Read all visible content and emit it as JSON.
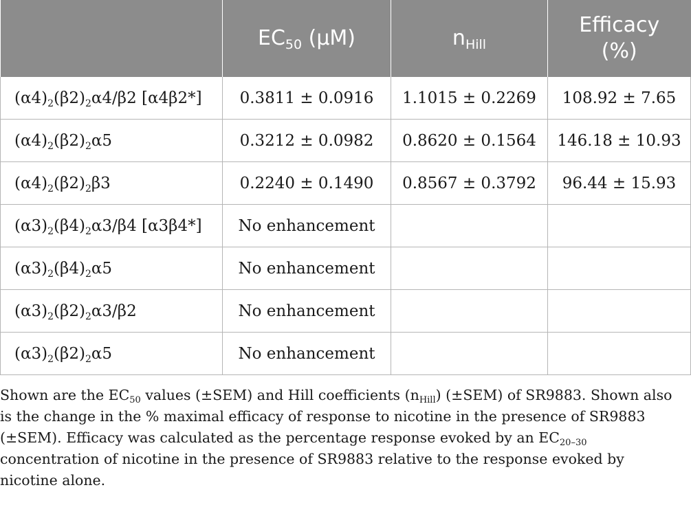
{
  "table": {
    "headers": [
      {
        "main": "",
        "sub": "",
        "tail": ""
      },
      {
        "main": "EC",
        "sub": "50",
        "tail": " (μM)"
      },
      {
        "main": "n",
        "sub": "Hill",
        "tail": ""
      },
      {
        "main": "Efficacy",
        "sub": "",
        "tail": "(%)"
      }
    ],
    "rows": [
      {
        "label": [
          "(α4)",
          "2",
          "(β2)",
          "2",
          "α4/β2 [α4β2*]"
        ],
        "ec50": "0.3811 ± 0.0916",
        "nhill": "1.1015 ± 0.2269",
        "efficacy": "108.92 ± 7.65"
      },
      {
        "label": [
          "(α4)",
          "2",
          "(β2)",
          "2",
          "α5"
        ],
        "ec50": "0.3212 ± 0.0982",
        "nhill": "0.8620 ± 0.1564",
        "efficacy": "146.18 ± 10.93"
      },
      {
        "label": [
          "(α4)",
          "2",
          "(β2)",
          "2",
          "β3"
        ],
        "ec50": "0.2240 ± 0.1490",
        "nhill": "0.8567 ± 0.3792",
        "efficacy": "96.44 ± 15.93"
      },
      {
        "label": [
          "(α3)",
          "2",
          "(β4)",
          "2",
          "α3/β4 [α3β4*]"
        ],
        "ec50": "No enhancement",
        "nhill": "",
        "efficacy": ""
      },
      {
        "label": [
          "(α3)",
          "2",
          "(β4)",
          "2",
          "α5"
        ],
        "ec50": "No enhancement",
        "nhill": "",
        "efficacy": ""
      },
      {
        "label": [
          "(α3)",
          "2",
          "(β2)",
          "2",
          "α3/β2"
        ],
        "ec50": "No enhancement",
        "nhill": "",
        "efficacy": ""
      },
      {
        "label": [
          "(α3)",
          "2",
          "(β2)",
          "2",
          "α5"
        ],
        "ec50": "No enhancement",
        "nhill": "",
        "efficacy": ""
      }
    ]
  },
  "footnote": {
    "p1": "Shown are the EC",
    "s1": "50",
    "p2": " values (±SEM) and Hill coefficients (n",
    "s2": "Hill",
    "p3": ") (±SEM) of SR9883. Shown also is the change in the % maximal efficacy of response to nicotine in the presence of SR9883 (±SEM). Efficacy was calculated as the percentage response evoked by an EC",
    "s3": "20–30",
    "p4": " concentration of nicotine in the presence of SR9883 relative to the response evoked by nicotine alone."
  }
}
